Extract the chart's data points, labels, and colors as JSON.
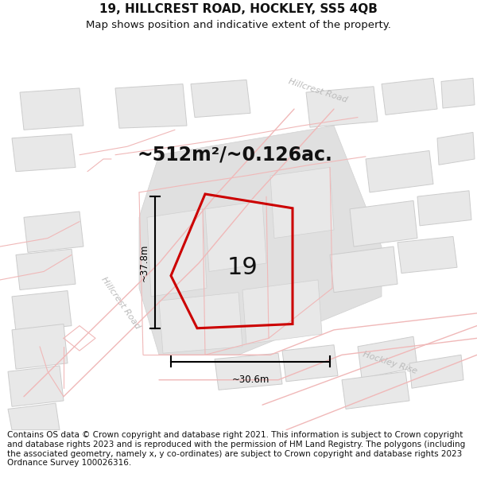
{
  "title": "19, HILLCREST ROAD, HOCKLEY, SS5 4QB",
  "subtitle": "Map shows position and indicative extent of the property.",
  "area_text": "~512m²/~0.126ac.",
  "label_19": "19",
  "dim_width": "~30.6m",
  "dim_height": "~37.8m",
  "footer": "Contains OS data © Crown copyright and database right 2021. This information is subject to Crown copyright and database rights 2023 and is reproduced with the permission of HM Land Registry. The polygons (including the associated geometry, namely x, y co-ordinates) are subject to Crown copyright and database rights 2023 Ordnance Survey 100026316.",
  "bg_color": "#ffffff",
  "plot_gray": "#e8e8e8",
  "plot_gray2": "#e0e0e0",
  "road_line_color": "#f0b8b8",
  "road_fill_color": "#f7e8e8",
  "red_line_color": "#cc0000",
  "dim_color": "#111111",
  "text_gray": "#aaaaaa",
  "title_fontsize": 11,
  "subtitle_fontsize": 9.5,
  "area_fontsize": 17,
  "label_fontsize": 22,
  "footer_fontsize": 7.5
}
